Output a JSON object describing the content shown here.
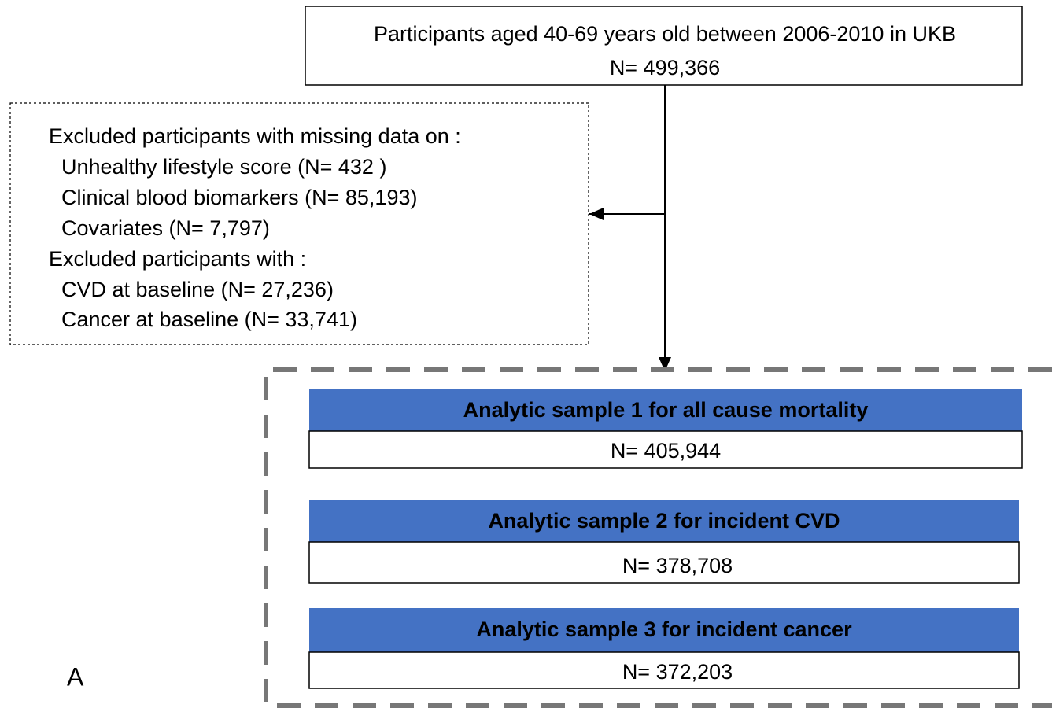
{
  "top_box": {
    "line1": "Participants aged 40-69 years old between 2006-2010 in UKB",
    "line2": "N= 499,366"
  },
  "exclusions": {
    "heading1": "Excluded participants with missing data on :",
    "items1": [
      "Unhealthy lifestyle score (N= 432 )",
      "Clinical blood biomarkers (N= 85,193)",
      "Covariates (N= 7,797)"
    ],
    "heading2": "Excluded participants with :",
    "items2": [
      "CVD at baseline (N= 27,236)",
      "Cancer at baseline (N= 33,741)"
    ]
  },
  "samples": [
    {
      "title": "Analytic sample 1 for all cause mortality",
      "n": "N= 405,944"
    },
    {
      "title": "Analytic sample 2 for incident CVD",
      "n": "N= 378,708"
    },
    {
      "title": "Analytic sample 3 for incident cancer",
      "n": "N= 372,203"
    }
  ],
  "panel_label": "A"
}
